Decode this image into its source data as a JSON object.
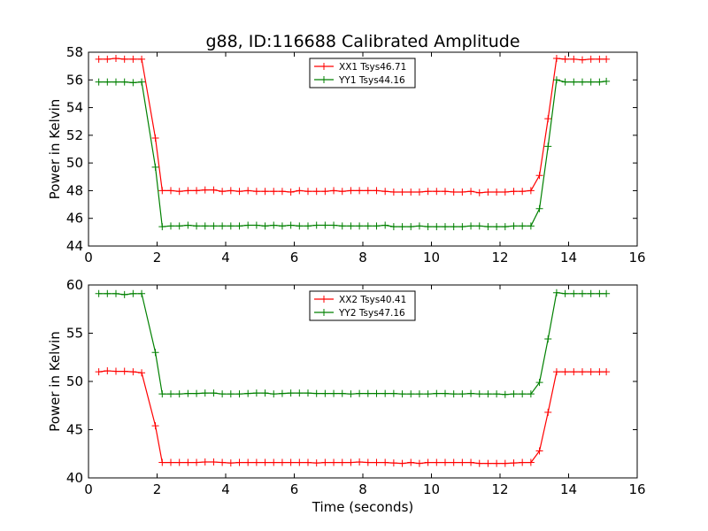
{
  "figure": {
    "title": "g88, ID:116688 Calibrated Amplitude",
    "xlabel": "Time (seconds)"
  },
  "chart_data": [
    {
      "type": "line",
      "title": "g88, ID:116688 Calibrated Amplitude",
      "xlabel": "",
      "ylabel": "Power in Kelvin",
      "xlim": [
        0,
        16
      ],
      "ylim": [
        44,
        58
      ],
      "xticks": [
        0,
        2,
        4,
        6,
        8,
        10,
        12,
        14,
        16
      ],
      "yticks": [
        44,
        46,
        48,
        50,
        52,
        54,
        56,
        58
      ],
      "grid": false,
      "legend": "top-center",
      "x": [
        0.3,
        0.55,
        0.8,
        1.05,
        1.3,
        1.55,
        1.95,
        2.15,
        2.4,
        2.65,
        2.9,
        3.15,
        3.4,
        3.65,
        3.9,
        4.15,
        4.4,
        4.65,
        4.9,
        5.15,
        5.4,
        5.65,
        5.9,
        6.15,
        6.4,
        6.65,
        6.9,
        7.15,
        7.4,
        7.65,
        7.9,
        8.15,
        8.4,
        8.65,
        8.9,
        9.15,
        9.4,
        9.65,
        9.9,
        10.15,
        10.4,
        10.65,
        10.9,
        11.15,
        11.4,
        11.65,
        11.9,
        12.15,
        12.4,
        12.65,
        12.9,
        13.15,
        13.4,
        13.65,
        13.9,
        14.15,
        14.4,
        14.65,
        14.9,
        15.1
      ],
      "series": [
        {
          "name": "XX1 Tsys46.71",
          "color": "#ff0000",
          "values": [
            57.5,
            57.5,
            57.55,
            57.5,
            57.5,
            57.5,
            51.8,
            48.0,
            48.0,
            47.95,
            48.0,
            48.0,
            48.05,
            48.05,
            47.95,
            48.0,
            47.95,
            48.0,
            47.95,
            47.95,
            47.95,
            47.95,
            47.9,
            48.0,
            47.95,
            47.95,
            47.95,
            48.0,
            47.95,
            48.0,
            48.0,
            48.0,
            48.0,
            47.95,
            47.9,
            47.9,
            47.9,
            47.9,
            47.95,
            47.95,
            47.95,
            47.9,
            47.9,
            47.95,
            47.85,
            47.9,
            47.9,
            47.9,
            47.95,
            47.95,
            48.0,
            49.1,
            53.2,
            57.55,
            57.5,
            57.5,
            57.45,
            57.5,
            57.5,
            57.5
          ]
        },
        {
          "name": "YY1 Tsys44.16",
          "color": "#008000",
          "values": [
            55.85,
            55.85,
            55.85,
            55.85,
            55.8,
            55.85,
            49.7,
            45.4,
            45.45,
            45.45,
            45.5,
            45.45,
            45.45,
            45.45,
            45.45,
            45.45,
            45.45,
            45.5,
            45.5,
            45.45,
            45.5,
            45.45,
            45.5,
            45.45,
            45.45,
            45.5,
            45.5,
            45.5,
            45.45,
            45.45,
            45.45,
            45.45,
            45.45,
            45.5,
            45.4,
            45.4,
            45.4,
            45.45,
            45.4,
            45.4,
            45.4,
            45.4,
            45.4,
            45.45,
            45.45,
            45.4,
            45.4,
            45.4,
            45.45,
            45.45,
            45.45,
            46.7,
            51.2,
            56.0,
            55.85,
            55.85,
            55.85,
            55.85,
            55.85,
            55.9
          ]
        }
      ]
    },
    {
      "type": "line",
      "title": "",
      "xlabel": "Time (seconds)",
      "ylabel": "Power in Kelvin",
      "xlim": [
        0,
        16
      ],
      "ylim": [
        40,
        60
      ],
      "xticks": [
        0,
        2,
        4,
        6,
        8,
        10,
        12,
        14,
        16
      ],
      "yticks": [
        40,
        45,
        50,
        55,
        60
      ],
      "grid": false,
      "legend": "top-center",
      "x": [
        0.3,
        0.55,
        0.8,
        1.05,
        1.3,
        1.55,
        1.95,
        2.15,
        2.4,
        2.65,
        2.9,
        3.15,
        3.4,
        3.65,
        3.9,
        4.15,
        4.4,
        4.65,
        4.9,
        5.15,
        5.4,
        5.65,
        5.9,
        6.15,
        6.4,
        6.65,
        6.9,
        7.15,
        7.4,
        7.65,
        7.9,
        8.15,
        8.4,
        8.65,
        8.9,
        9.15,
        9.4,
        9.65,
        9.9,
        10.15,
        10.4,
        10.65,
        10.9,
        11.15,
        11.4,
        11.65,
        11.9,
        12.15,
        12.4,
        12.65,
        12.9,
        13.15,
        13.4,
        13.65,
        13.9,
        14.15,
        14.4,
        14.65,
        14.9,
        15.1
      ],
      "series": [
        {
          "name": "XX2 Tsys40.41",
          "color": "#ff0000",
          "values": [
            51.0,
            51.1,
            51.05,
            51.05,
            51.0,
            50.9,
            45.4,
            41.6,
            41.6,
            41.6,
            41.6,
            41.6,
            41.65,
            41.65,
            41.6,
            41.55,
            41.6,
            41.6,
            41.6,
            41.6,
            41.6,
            41.6,
            41.6,
            41.6,
            41.6,
            41.55,
            41.6,
            41.6,
            41.6,
            41.6,
            41.65,
            41.6,
            41.6,
            41.6,
            41.55,
            41.5,
            41.6,
            41.5,
            41.6,
            41.6,
            41.6,
            41.6,
            41.6,
            41.6,
            41.5,
            41.5,
            41.5,
            41.5,
            41.55,
            41.6,
            41.6,
            42.8,
            46.8,
            51.0,
            51.0,
            51.0,
            51.0,
            51.0,
            51.0,
            51.0
          ]
        },
        {
          "name": "YY2 Tsys47.16",
          "color": "#008000",
          "values": [
            59.1,
            59.1,
            59.1,
            59.0,
            59.1,
            59.1,
            53.0,
            48.7,
            48.7,
            48.7,
            48.75,
            48.75,
            48.8,
            48.8,
            48.7,
            48.7,
            48.7,
            48.75,
            48.8,
            48.8,
            48.7,
            48.75,
            48.8,
            48.8,
            48.8,
            48.75,
            48.75,
            48.75,
            48.75,
            48.7,
            48.75,
            48.75,
            48.75,
            48.75,
            48.75,
            48.7,
            48.7,
            48.7,
            48.7,
            48.75,
            48.75,
            48.7,
            48.7,
            48.75,
            48.7,
            48.7,
            48.7,
            48.65,
            48.7,
            48.7,
            48.7,
            49.9,
            54.4,
            59.2,
            59.1,
            59.1,
            59.1,
            59.1,
            59.1,
            59.1
          ]
        }
      ]
    }
  ]
}
